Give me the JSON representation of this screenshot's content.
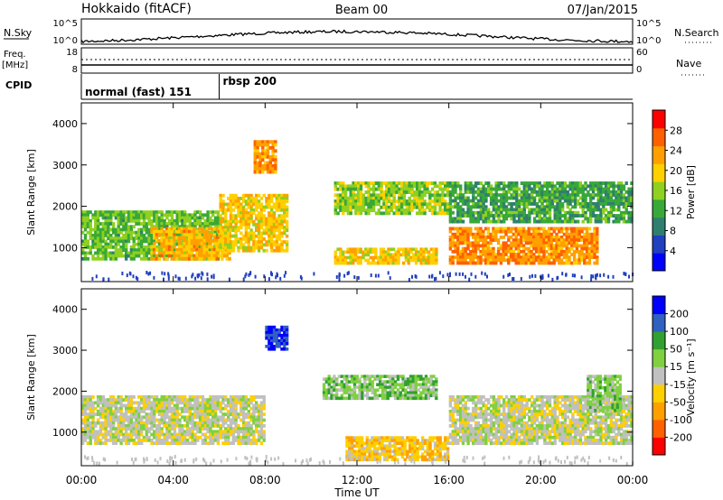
{
  "header": {
    "station": "Hokkaido (fitACF)",
    "beam": "Beam 00",
    "date": "07/Jan/2015"
  },
  "noise_panel": {
    "left_label": "N.Sky",
    "right_label": "N.Search",
    "left_ticks": [
      "10^5",
      "10^0"
    ],
    "right_ticks": [
      "10^5",
      "10^0"
    ]
  },
  "freq_panel": {
    "left_label_line1": "Freq.",
    "left_label_line2": "[MHz]",
    "left_ticks": [
      "18",
      "8"
    ],
    "right_label": "Nave",
    "right_ticks": [
      "60",
      "0"
    ]
  },
  "cpid": {
    "label": "CPID",
    "segments": [
      {
        "name": "normal (fast) 151",
        "start_hour": 0,
        "end_hour": 6.0
      },
      {
        "name": "rbsp 200",
        "start_hour": 6.0,
        "end_hour": 24.0
      }
    ]
  },
  "chart_data": [
    {
      "type": "heatmap",
      "title": "Power",
      "ylabel": "Slant Range [km]",
      "ylim": [
        180,
        4500
      ],
      "y_ticks": [
        "1000",
        "2000",
        "3000",
        "4000"
      ],
      "colorbar_label": "Power [dB]",
      "colorbar_ticks": [
        "28",
        "24",
        "20",
        "16",
        "12",
        "8",
        "4"
      ],
      "colorbar_range": [
        0,
        32
      ],
      "colors": [
        "#0000ff",
        "#2040c0",
        "#2f7f6f",
        "#38a838",
        "#8fd020",
        "#ffd000",
        "#ffa000",
        "#ff6000",
        "#ff0000"
      ],
      "bands": [
        {
          "t0": 0.0,
          "t1": 6.0,
          "r0": 700,
          "r1": 1900,
          "value": 14
        },
        {
          "t0": 3.0,
          "t1": 6.5,
          "r0": 700,
          "r1": 1500,
          "value": 22
        },
        {
          "t0": 6.0,
          "t1": 9.0,
          "r0": 900,
          "r1": 2300,
          "value": 20
        },
        {
          "t0": 7.5,
          "t1": 8.5,
          "r0": 2800,
          "r1": 3600,
          "value": 24
        },
        {
          "t0": 11.0,
          "t1": 16.0,
          "r0": 1800,
          "r1": 2600,
          "value": 16
        },
        {
          "t0": 11.0,
          "t1": 15.5,
          "r0": 600,
          "r1": 1000,
          "value": 20
        },
        {
          "t0": 16.0,
          "t1": 22.5,
          "r0": 600,
          "r1": 1500,
          "value": 24
        },
        {
          "t0": 16.0,
          "t1": 24.0,
          "r0": 1600,
          "r1": 2600,
          "value": 12
        }
      ]
    },
    {
      "type": "heatmap",
      "title": "Velocity",
      "ylabel": "Slant Range [km]",
      "ylim": [
        180,
        4500
      ],
      "y_ticks": [
        "1000",
        "2000",
        "3000",
        "4000"
      ],
      "colorbar_label": "Velocity [m s⁻¹]",
      "colorbar_ticks": [
        "200",
        "100",
        "50",
        "15",
        "-15",
        "-50",
        "-100",
        "-200"
      ],
      "colorbar_range": [
        -250,
        250
      ],
      "colors": [
        "#ff0000",
        "#ff6000",
        "#ffa000",
        "#ffd000",
        "#c0c0c0",
        "#80d040",
        "#30a030",
        "#3060c0",
        "#0000ff"
      ],
      "bands": [
        {
          "t0": 0.0,
          "t1": 8.0,
          "r0": 700,
          "r1": 1900,
          "value": 0
        },
        {
          "t0": 8.0,
          "t1": 9.0,
          "r0": 3000,
          "r1": 3600,
          "value": 200
        },
        {
          "t0": 10.5,
          "t1": 15.5,
          "r0": 1800,
          "r1": 2400,
          "value": 60
        },
        {
          "t0": 11.5,
          "t1": 16.0,
          "r0": 300,
          "r1": 900,
          "value": -60
        },
        {
          "t0": 16.0,
          "t1": 24.0,
          "r0": 700,
          "r1": 1900,
          "value": 0
        },
        {
          "t0": 22.0,
          "t1": 23.5,
          "r0": 1500,
          "r1": 2400,
          "value": 50
        }
      ]
    }
  ],
  "x_axis": {
    "label": "Time UT",
    "ticks": [
      "00:00",
      "04:00",
      "08:00",
      "12:00",
      "16:00",
      "20:00",
      "00:00"
    ],
    "range_hours": [
      0,
      24
    ]
  }
}
